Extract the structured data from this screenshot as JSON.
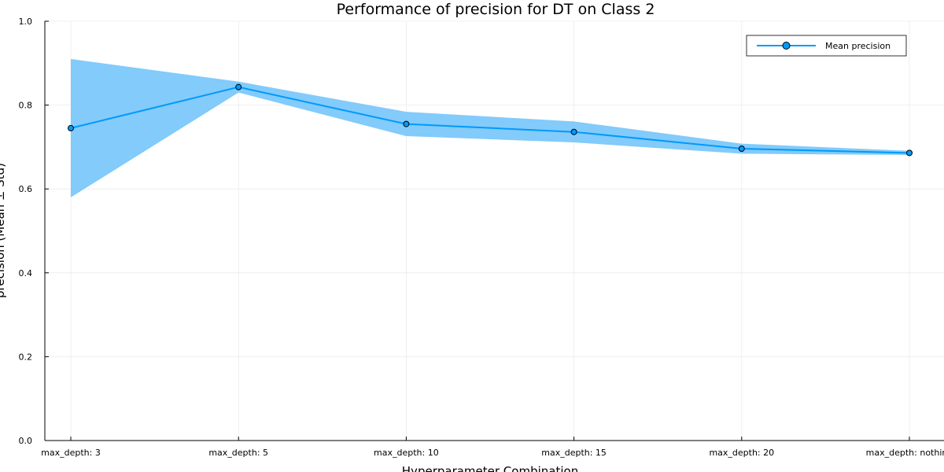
{
  "colors": {
    "series": "#009AFA",
    "band": "#82CBFB",
    "grid": "#EBEBEB",
    "axis": "#000000",
    "marker_stroke": "#000000"
  },
  "chart_data": {
    "type": "line",
    "title": "Performance of precision for DT on Class 2",
    "xlabel": "Hyperparameter Combination",
    "ylabel": "precision (Mean ± Std)",
    "categories": [
      "max_depth: 3",
      "max_depth: 5",
      "max_depth: 10",
      "max_depth: 15",
      "max_depth: 20",
      "max_depth: nothing"
    ],
    "series": [
      {
        "name": "Mean precision",
        "values": [
          0.745,
          0.843,
          0.755,
          0.736,
          0.696,
          0.686
        ],
        "std": [
          0.165,
          0.013,
          0.029,
          0.025,
          0.012,
          0.005
        ],
        "marker": "circle"
      }
    ],
    "ylim": [
      0,
      1
    ],
    "yticks": [
      0.0,
      0.2,
      0.4,
      0.6,
      0.8,
      1.0
    ],
    "ytick_labels": [
      "0.0",
      "0.2",
      "0.4",
      "0.6",
      "0.8",
      "1.0"
    ],
    "grid": true,
    "legend_position": "top-right"
  }
}
